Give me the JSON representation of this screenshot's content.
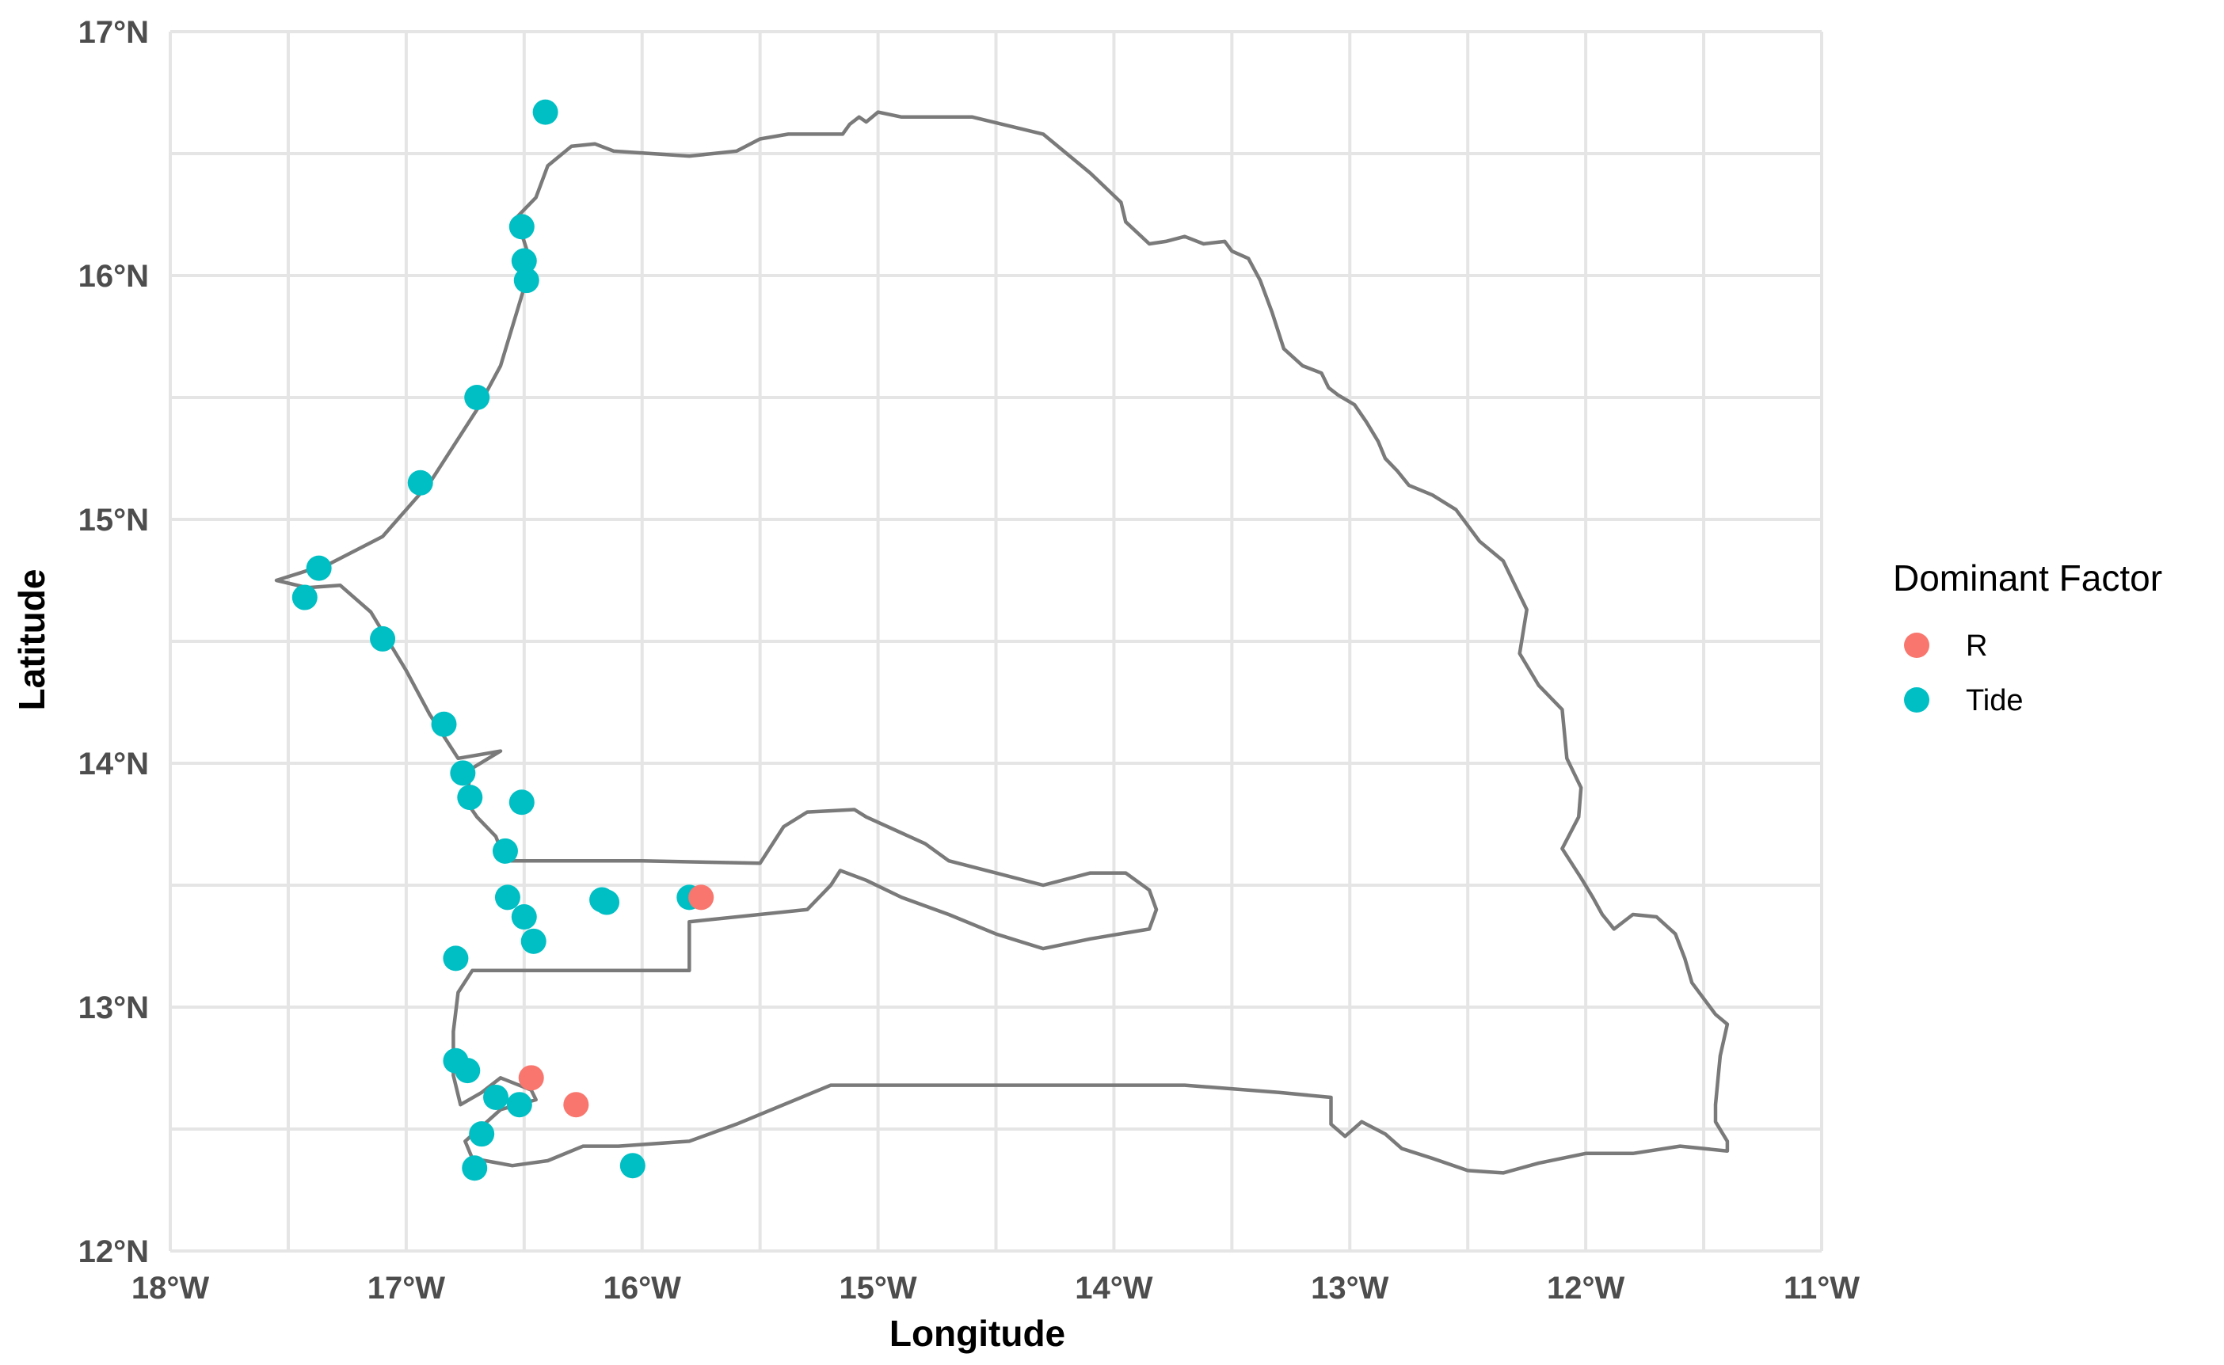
{
  "chart_data": {
    "type": "scatter",
    "title": "",
    "xlabel": "Longitude",
    "ylabel": "Latitude",
    "xlim": [
      -18,
      -11
    ],
    "ylim": [
      12,
      17
    ],
    "x_ticks": [
      {
        "value": -18,
        "label": "18°W"
      },
      {
        "value": -17,
        "label": "17°W"
      },
      {
        "value": -16,
        "label": "16°W"
      },
      {
        "value": -15,
        "label": "15°W"
      },
      {
        "value": -14,
        "label": "14°W"
      },
      {
        "value": -13,
        "label": "13°W"
      },
      {
        "value": -12,
        "label": "12°W"
      },
      {
        "value": -11,
        "label": "11°W"
      }
    ],
    "y_ticks": [
      {
        "value": 12,
        "label": "12°N"
      },
      {
        "value": 13,
        "label": "13°N"
      },
      {
        "value": 14,
        "label": "14°N"
      },
      {
        "value": 15,
        "label": "15°N"
      },
      {
        "value": 16,
        "label": "16°N"
      },
      {
        "value": 17,
        "label": "17°N"
      }
    ],
    "grid": true,
    "legend": {
      "title": "Dominant Factor",
      "placement": "right",
      "entries": [
        {
          "label": "R",
          "color": "#F8766D"
        },
        {
          "label": "Tide",
          "color": "#00BFC4"
        }
      ]
    },
    "border_color": "#7a7a7a",
    "series": [
      {
        "name": "Tide",
        "color": "#00BFC4",
        "points": [
          [
            -16.41,
            16.67
          ],
          [
            -16.51,
            16.2
          ],
          [
            -16.5,
            16.06
          ],
          [
            -16.49,
            15.98
          ],
          [
            -16.7,
            15.5
          ],
          [
            -16.94,
            15.15
          ],
          [
            -17.37,
            14.8
          ],
          [
            -17.43,
            14.68
          ],
          [
            -17.1,
            14.51
          ],
          [
            -16.84,
            14.16
          ],
          [
            -16.76,
            13.96
          ],
          [
            -16.73,
            13.86
          ],
          [
            -16.51,
            13.84
          ],
          [
            -16.58,
            13.64
          ],
          [
            -16.57,
            13.45
          ],
          [
            -16.5,
            13.37
          ],
          [
            -16.46,
            13.27
          ],
          [
            -16.17,
            13.44
          ],
          [
            -16.15,
            13.43
          ],
          [
            -15.8,
            13.45
          ],
          [
            -16.79,
            13.2
          ],
          [
            -16.79,
            12.78
          ],
          [
            -16.74,
            12.74
          ],
          [
            -16.62,
            12.63
          ],
          [
            -16.52,
            12.6
          ],
          [
            -16.68,
            12.48
          ],
          [
            -16.71,
            12.34
          ],
          [
            -16.04,
            12.35
          ]
        ]
      },
      {
        "name": "R",
        "color": "#F8766D",
        "points": [
          [
            -15.75,
            13.45
          ],
          [
            -16.47,
            12.71
          ],
          [
            -16.28,
            12.6
          ]
        ]
      }
    ]
  }
}
